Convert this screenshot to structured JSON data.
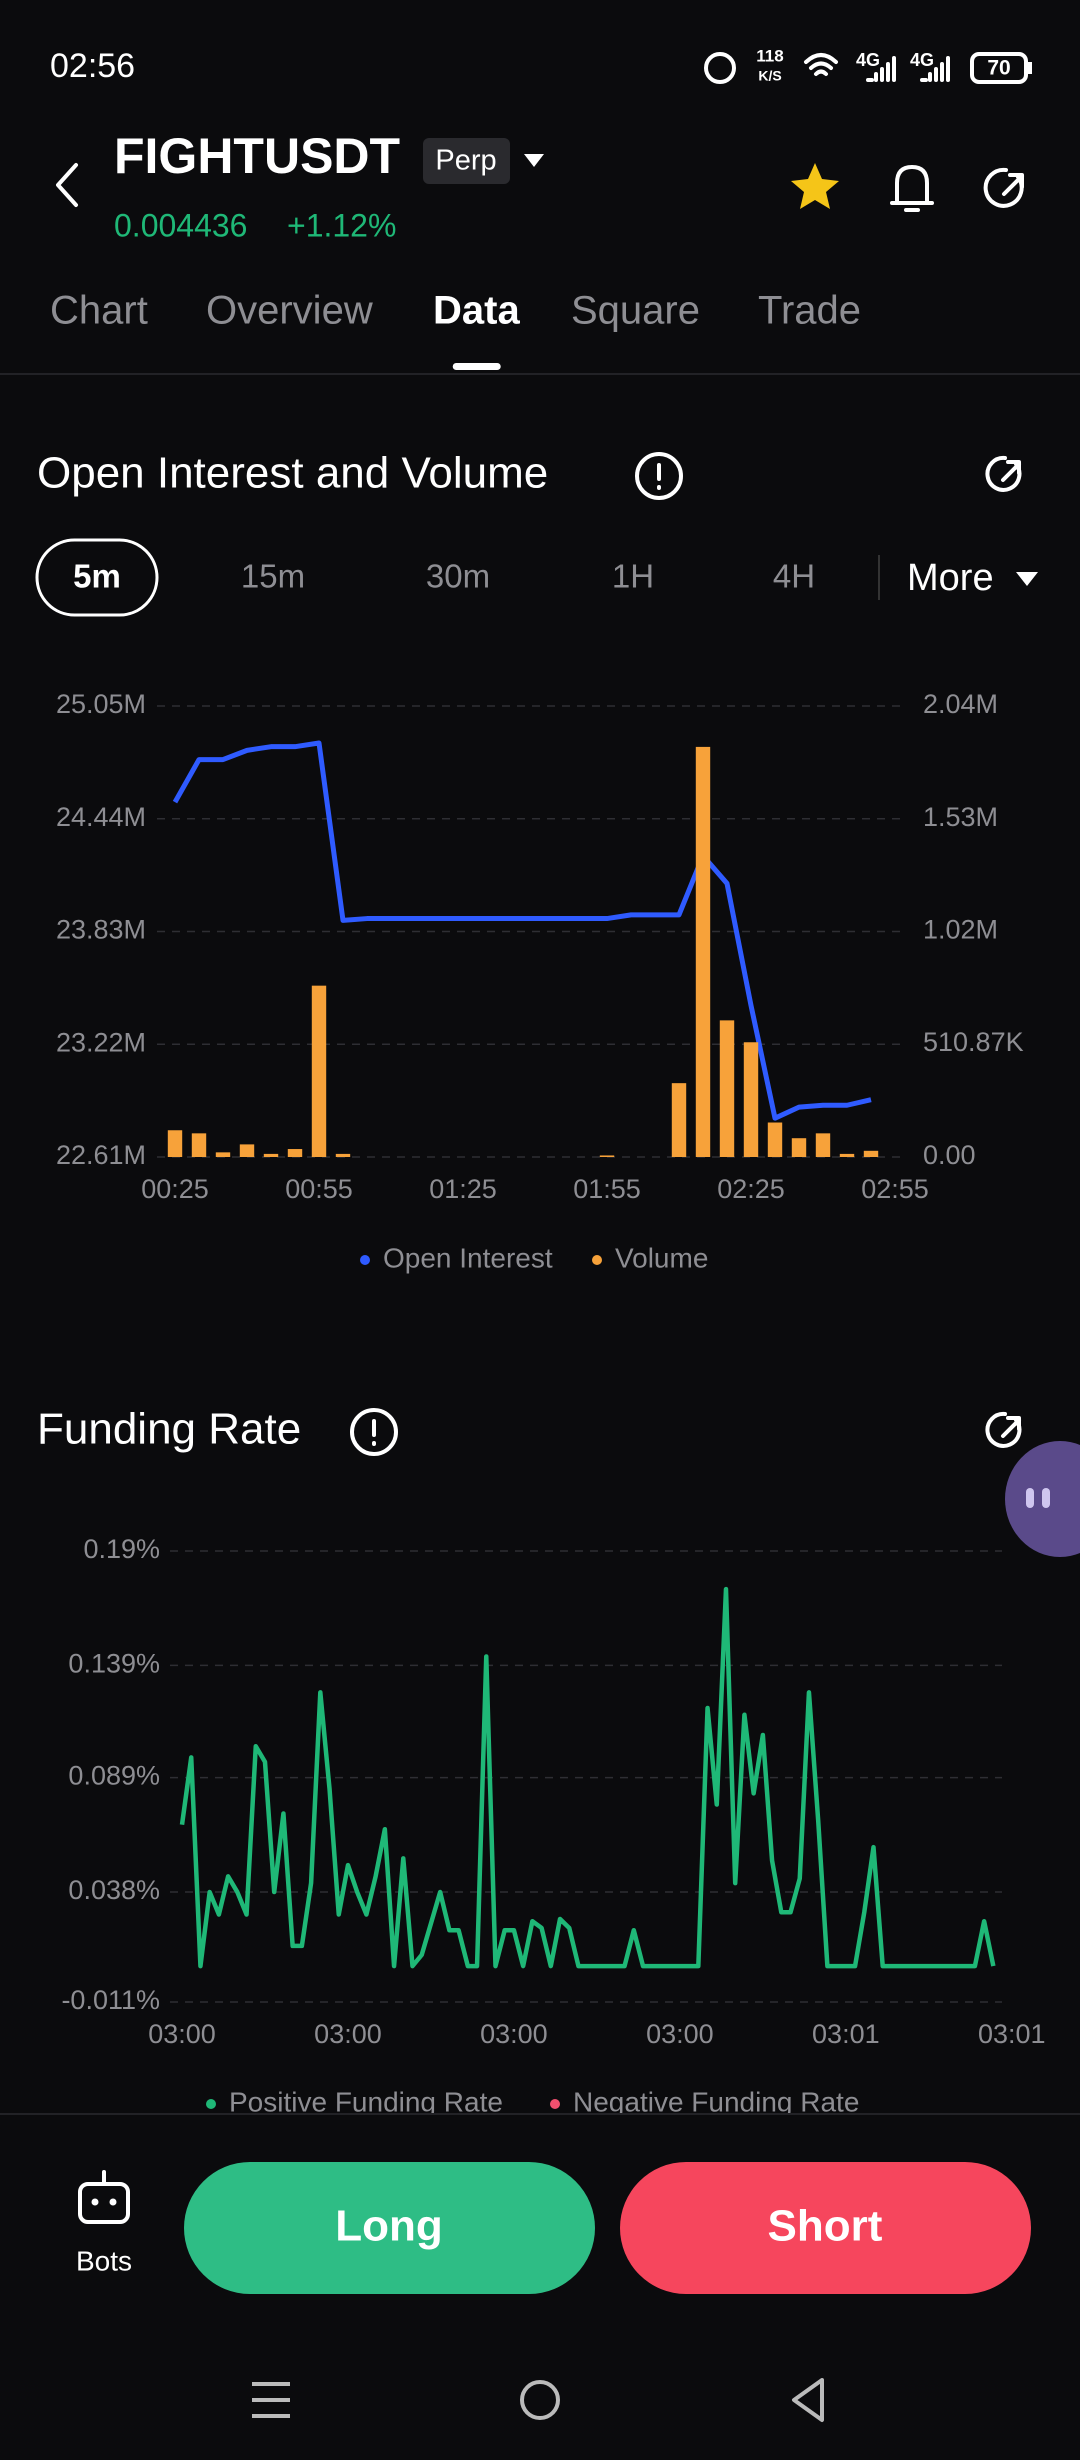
{
  "status_bar": {
    "time": "02:56",
    "net_speed": "118",
    "net_unit": "K/S",
    "network_1": "4G",
    "network_2": "4G",
    "battery": "70"
  },
  "header": {
    "symbol": "FIGHTUSDT",
    "badge": "Perp",
    "price": "0.004436",
    "change": "+1.12%"
  },
  "tabs": {
    "items": [
      "Chart",
      "Overview",
      "Data",
      "Square",
      "Trade"
    ],
    "active": 2
  },
  "open_interest": {
    "title": "Open Interest and Volume",
    "intervals": [
      "5m",
      "15m",
      "30m",
      "1H",
      "4H"
    ],
    "active_interval": 0,
    "more": "More",
    "chart": {
      "type": "combo",
      "categories": [
        "00:25",
        null,
        null,
        null,
        null,
        null,
        "00:55",
        null,
        null,
        null,
        null,
        null,
        "01:25",
        null,
        null,
        null,
        null,
        null,
        "01:55",
        null,
        null,
        null,
        null,
        null,
        "02:25",
        null,
        null,
        null,
        null,
        null,
        "02:55"
      ],
      "series": [
        {
          "name": "Open Interest",
          "type": "line",
          "color": "#2f5bff",
          "values": [
            24530000,
            24760000,
            24760000,
            24810000,
            24830000,
            24830000,
            24850000,
            23890000,
            23900000,
            23900000,
            23900000,
            23900000,
            23900000,
            23900000,
            23900000,
            23900000,
            23900000,
            23900000,
            23900000,
            23920000,
            23920000,
            23920000,
            24240000,
            24090000,
            23430000,
            22820000,
            22880000,
            22890000,
            22890000,
            22920000,
            null
          ]
        },
        {
          "name": "Volume",
          "type": "bar",
          "axis": "y2",
          "color": "#f7a23a",
          "values": [
            121000,
            107000,
            21000,
            57000,
            14000,
            36000,
            775000,
            14000,
            0,
            0,
            0,
            0,
            0,
            0,
            0,
            0,
            0,
            0,
            7000,
            0,
            0,
            334000,
            1855000,
            618000,
            519000,
            156000,
            85000,
            107000,
            14000,
            28000,
            null
          ]
        }
      ],
      "ylim": [
        22610000,
        25050000
      ],
      "yticks": [
        {
          "value": 22610000,
          "label": "22.61M"
        },
        {
          "value": 23220000,
          "label": "23.22M"
        },
        {
          "value": 23830000,
          "label": "23.83M"
        },
        {
          "value": 24440000,
          "label": "24.44M"
        },
        {
          "value": 25050000,
          "label": "25.05M"
        }
      ],
      "y2lim": [
        0,
        2040000
      ],
      "y2ticks": [
        {
          "value": 0,
          "label": "0.00"
        },
        {
          "value": 510870,
          "label": "510.87K"
        },
        {
          "value": 1020000,
          "label": "1.02M"
        },
        {
          "value": 1530000,
          "label": "1.53M"
        },
        {
          "value": 2040000,
          "label": "2.04M"
        }
      ],
      "grid": true
    }
  },
  "funding_rate": {
    "title": "Funding Rate",
    "chart": {
      "type": "line",
      "categories": [
        "03:00",
        null,
        null,
        null,
        null,
        null,
        null,
        null,
        null,
        null,
        null,
        null,
        null,
        null,
        null,
        null,
        null,
        null,
        "03:00",
        null,
        null,
        null,
        null,
        null,
        null,
        null,
        null,
        null,
        null,
        null,
        null,
        null,
        null,
        null,
        null,
        null,
        "03:00",
        null,
        null,
        null,
        null,
        null,
        null,
        null,
        null,
        null,
        null,
        null,
        null,
        null,
        null,
        null,
        null,
        null,
        "03:00",
        null,
        null,
        null,
        null,
        null,
        null,
        null,
        null,
        null,
        null,
        null,
        null,
        null,
        null,
        null,
        null,
        null,
        "03:01",
        null,
        null,
        null,
        null,
        null,
        null,
        null,
        null,
        null,
        null,
        null,
        null,
        null,
        null,
        null,
        null,
        null,
        "03:01"
      ],
      "series": [
        {
          "name": "Positive Funding Rate",
          "color": "#1fb877",
          "values": [
            0.068,
            0.098,
            0.005,
            0.038,
            0.028,
            0.045,
            0.038,
            0.028,
            0.103,
            0.096,
            0.038,
            0.073,
            0.014,
            0.014,
            0.042,
            0.127,
            0.084,
            0.028,
            0.05,
            0.038,
            0.028,
            0.045,
            0.066,
            0.005,
            0.053,
            0.005,
            0.01,
            0.024,
            0.038,
            0.021,
            0.021,
            0.005,
            0.005,
            0.143,
            0.005,
            0.021,
            0.021,
            0.005,
            0.025,
            0.022,
            0.005,
            0.026,
            0.022,
            0.005,
            0.005,
            0.005,
            0.005,
            0.005,
            0.005,
            0.021,
            0.005,
            0.005,
            0.005,
            0.005,
            0.005,
            0.005,
            0.005,
            0.12,
            0.077,
            0.173,
            0.042,
            0.117,
            0.082,
            0.108,
            0.052,
            0.029,
            0.029,
            0.044,
            0.127,
            0.07,
            0.005,
            0.005,
            0.005,
            0.005,
            0.029,
            0.058,
            0.005,
            0.005,
            0.005,
            0.005,
            0.005,
            0.005,
            0.005,
            0.005,
            0.005,
            0.005,
            0.005,
            0.025,
            0.005,
            null,
            null
          ]
        }
      ],
      "extra_legend": [
        {
          "name": "Negative Funding Rate",
          "color": "#f0506e"
        }
      ],
      "ylim": [
        -0.011,
        0.19
      ],
      "yticks": [
        {
          "value": -0.011,
          "label": "-0.011%"
        },
        {
          "value": 0.038,
          "label": "0.038%"
        },
        {
          "value": 0.089,
          "label": "0.089%"
        },
        {
          "value": 0.139,
          "label": "0.139%"
        },
        {
          "value": 0.19,
          "label": "0.19%"
        }
      ],
      "grid": true
    }
  },
  "bottom_bar": {
    "bots": "Bots",
    "long": "Long",
    "short": "Short"
  }
}
